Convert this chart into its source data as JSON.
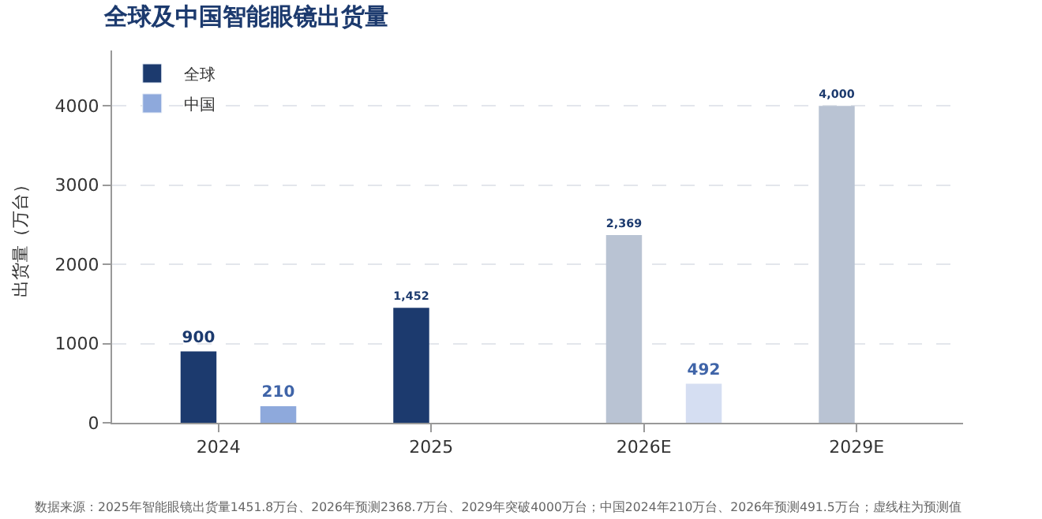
{
  "chart_data": {
    "type": "bar",
    "title": "全球及中国智能眼镜出货量",
    "categories": [
      "2024",
      "2025",
      "2026E",
      "2029E"
    ],
    "series": [
      {
        "name": "全球",
        "color": "#1c3a6e",
        "colors": [
          "#1c3a6e",
          "#1c3a6e",
          "#b9c3d3",
          "#b9c3d3"
        ],
        "values": [
          900,
          1452,
          2369,
          4000
        ],
        "value_labels": [
          "900",
          "1,452",
          "2,369",
          "4,000"
        ]
      },
      {
        "name": "中国",
        "color": "#8ea9dc",
        "colors": [
          "#8ea9dc",
          "#8ea9dc",
          "#d5def2",
          "#d5def2"
        ],
        "values": [
          210,
          null,
          492,
          null
        ],
        "value_labels": [
          "210",
          null,
          "492",
          null
        ]
      }
    ],
    "ylabel": "出货量（万台）",
    "ylim": [
      0,
      4700
    ],
    "yticks": [
      0,
      1000,
      2000,
      3000,
      4000
    ],
    "grid": "y",
    "legend": "top left",
    "annotations": [
      "数据来源：2025年智能眼镜出货量1451.8万台、2026年预测2368.7万台、2029年突破4000万台；中国2024年210万台、2026年预测491.5万台；虚线柱为预测值"
    ]
  }
}
